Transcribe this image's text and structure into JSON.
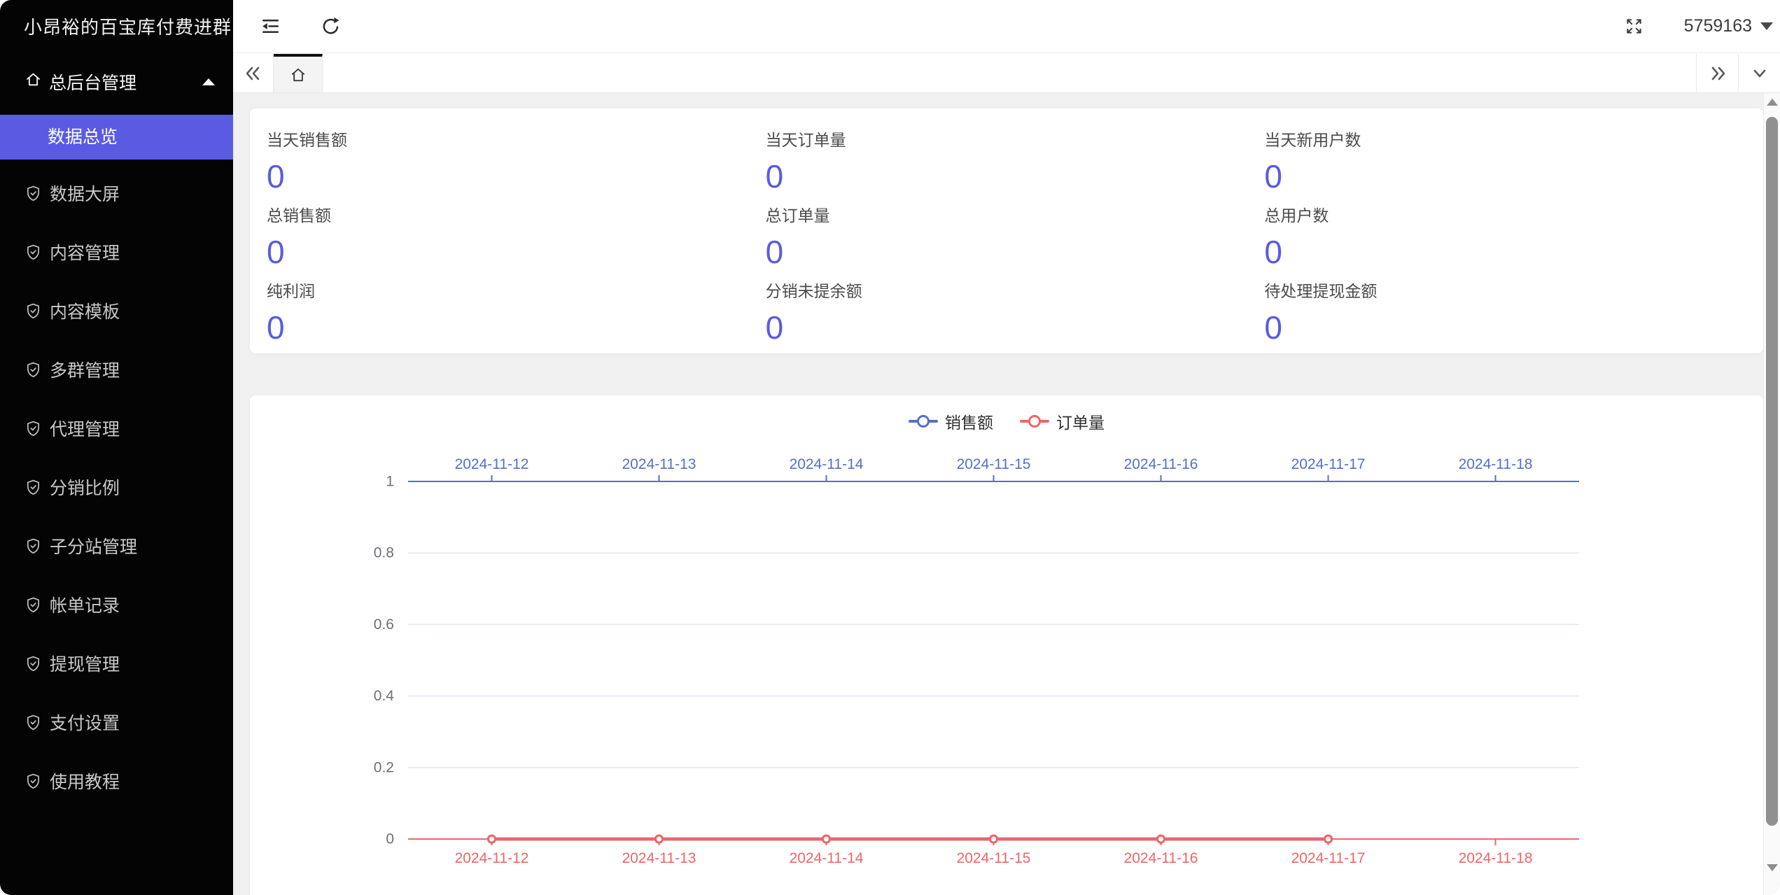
{
  "sidebar": {
    "title": "小昂裕的百宝库付费进群",
    "section": {
      "label": "总后台管理",
      "expanded": true
    },
    "active_item": {
      "label": "数据总览"
    },
    "items": [
      {
        "label": "数据大屏"
      },
      {
        "label": "内容管理"
      },
      {
        "label": "内容模板"
      },
      {
        "label": "多群管理"
      },
      {
        "label": "代理管理"
      },
      {
        "label": "分销比例"
      },
      {
        "label": "子分站管理"
      },
      {
        "label": "帐单记录"
      },
      {
        "label": "提现管理"
      },
      {
        "label": "支付设置"
      },
      {
        "label": "使用教程"
      }
    ]
  },
  "topbar": {
    "account": "5759163"
  },
  "stats": [
    {
      "label": "当天销售额",
      "value": "0"
    },
    {
      "label": "当天订单量",
      "value": "0"
    },
    {
      "label": "当天新用户数",
      "value": "0"
    },
    {
      "label": "总销售额",
      "value": "0"
    },
    {
      "label": "总订单量",
      "value": "0"
    },
    {
      "label": "总用户数",
      "value": "0"
    },
    {
      "label": "纯利润",
      "value": "0"
    },
    {
      "label": "分销未提余额",
      "value": "0"
    },
    {
      "label": "待处理提现金额",
      "value": "0"
    }
  ],
  "chart_data": {
    "type": "line",
    "categories": [
      "2024-11-12",
      "2024-11-13",
      "2024-11-14",
      "2024-11-15",
      "2024-11-16",
      "2024-11-17",
      "2024-11-18"
    ],
    "series": [
      {
        "name": "销售额",
        "color": "#5470c6",
        "axis": "top",
        "values": [
          0,
          0,
          0,
          0,
          0,
          0,
          null
        ]
      },
      {
        "name": "订单量",
        "color": "#ee6666",
        "axis": "bottom",
        "values": [
          0,
          0,
          0,
          0,
          0,
          0,
          null
        ]
      }
    ],
    "ylim": [
      0,
      1
    ],
    "yticks": [
      0,
      0.2,
      0.4,
      0.6,
      0.8,
      1
    ],
    "legend_position": "top-center",
    "grid": true,
    "x_axis_top_color": "#5470c6",
    "x_axis_bottom_color": "#ee6666"
  },
  "colors": {
    "accent": "#5a5be2",
    "stat_value": "#5a5ce0",
    "chart_grid": "#e0e6f1",
    "axis_label": "#6e7079"
  },
  "icons": {
    "sidebar_section": "home-icon",
    "sidebar_item": "shield-check-icon",
    "topbar": [
      "menu-fold-icon",
      "refresh-icon",
      "fullscreen-icon",
      "caret-down-icon"
    ],
    "tabbar": [
      "chevrons-left-icon",
      "home-icon",
      "chevrons-right-icon",
      "chevron-down-icon"
    ],
    "scrollbar": [
      "triangle-up-icon",
      "triangle-down-icon"
    ]
  }
}
